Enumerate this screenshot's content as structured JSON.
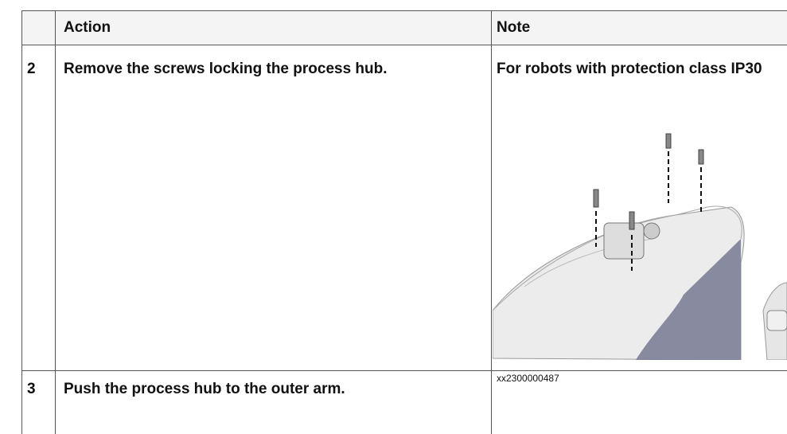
{
  "table": {
    "columns": [
      "Action",
      "Note"
    ],
    "rows": [
      {
        "step": "2",
        "action": "Remove the screws locking the process hub.",
        "note": "For robots with protection class IP30",
        "figure": "xx2300000487"
      },
      {
        "step": "3",
        "action": "Push the process hub to the outer arm."
      }
    ]
  }
}
